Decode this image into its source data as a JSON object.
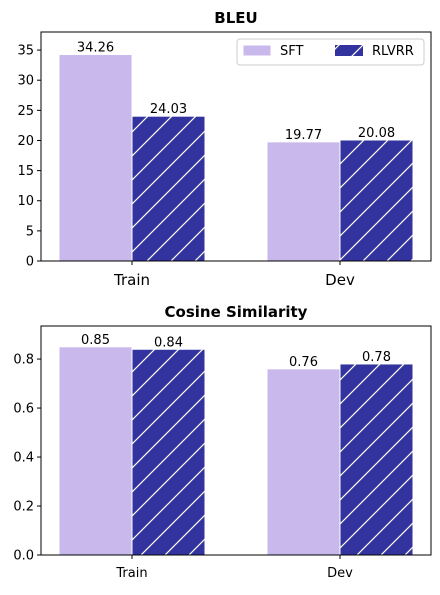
{
  "colors": {
    "sft": "#c8b8ec",
    "rlvrr": "#3333a0",
    "hatch": "#ffffff"
  },
  "legend": {
    "items": [
      "SFT",
      "RLVRR"
    ],
    "placement": "top-right"
  },
  "chart_data": [
    {
      "type": "bar",
      "title": "BLEU",
      "categories": [
        "Train",
        "Dev"
      ],
      "series": [
        {
          "name": "SFT",
          "values": [
            34.26,
            19.77
          ]
        },
        {
          "name": "RLVRR",
          "values": [
            24.03,
            20.08
          ]
        }
      ],
      "data_labels": [
        [
          "34.26",
          "19.77"
        ],
        [
          "24.03",
          "20.08"
        ]
      ],
      "ylim": [
        0,
        38
      ],
      "yticks": [
        0,
        5,
        10,
        15,
        20,
        25,
        30,
        35
      ],
      "ytick_labels": [
        "0",
        "5",
        "10",
        "15",
        "20",
        "25",
        "30",
        "35"
      ],
      "xlabel": "",
      "ylabel": "",
      "grid": false
    },
    {
      "type": "bar",
      "title": "Cosine Similarity",
      "categories": [
        "Train",
        "Dev"
      ],
      "series": [
        {
          "name": "SFT",
          "values": [
            0.85,
            0.76
          ]
        },
        {
          "name": "RLVRR",
          "values": [
            0.84,
            0.78
          ]
        }
      ],
      "data_labels": [
        [
          "0.85",
          "0.76"
        ],
        [
          "0.84",
          "0.78"
        ]
      ],
      "ylim": [
        0,
        0.935
      ],
      "yticks": [
        0,
        0.2,
        0.4,
        0.6,
        0.8
      ],
      "ytick_labels": [
        "0.0",
        "0.2",
        "0.4",
        "0.6",
        "0.8"
      ],
      "xlabel": "",
      "ylabel": "",
      "grid": false
    }
  ]
}
